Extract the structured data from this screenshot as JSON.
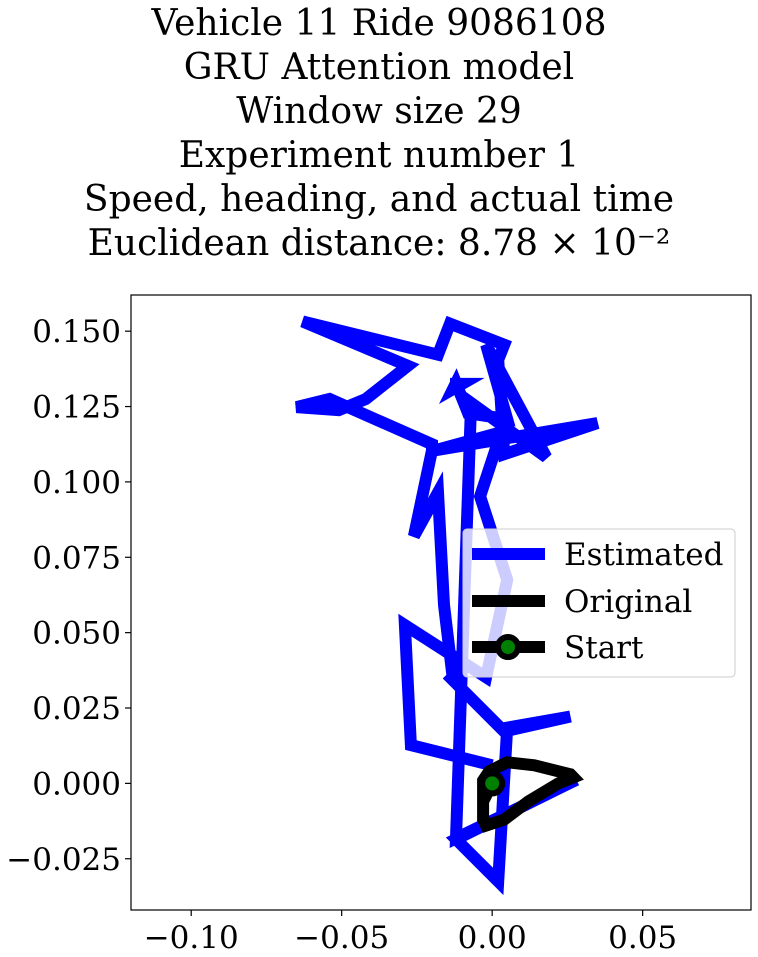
{
  "chart_data": {
    "type": "line",
    "title_lines": [
      "Vehicle 11 Ride 9086108",
      "GRU Attention model",
      "Window size 29",
      "Experiment number 1",
      "Speed, heading, and actual time",
      "Euclidean distance: 8.78 × 10⁻²"
    ],
    "xlabel": "",
    "ylabel": "",
    "xlim": [
      -0.12,
      0.086
    ],
    "ylim": [
      -0.042,
      0.162
    ],
    "xticks": [
      -0.1,
      -0.05,
      0.0,
      0.05
    ],
    "xtick_labels": [
      "−0.10",
      "−0.05",
      "0.00",
      "0.05"
    ],
    "yticks": [
      0.15,
      0.125,
      0.1,
      0.075,
      0.05,
      0.025,
      0.0,
      -0.025
    ],
    "ytick_labels": [
      "0.150",
      "0.125",
      "0.100",
      "0.075",
      "0.050",
      "0.025",
      "0.000",
      "−0.025"
    ],
    "grid": false,
    "legend_position": "center-right",
    "series": [
      {
        "name": "Estimated",
        "color": "#0000ff",
        "x": [
          0.0,
          -0.027,
          -0.029,
          -0.002,
          0.005,
          -0.004,
          0.003,
          -0.019,
          0.035,
          0.004,
          0.002,
          0.004,
          -0.014,
          -0.018,
          -0.063,
          -0.028,
          -0.042,
          -0.051,
          -0.065,
          -0.054,
          -0.02,
          -0.02,
          -0.026,
          -0.018,
          -0.016,
          -0.013,
          -0.015,
          0.004,
          0.026,
          0.005,
          0.002,
          -0.012,
          0.028,
          -0.012,
          -0.007,
          0.018,
          -0.002,
          0.005,
          -0.008,
          -0.012,
          -0.013,
          -0.01,
          -0.014
        ],
        "y": [
          0.006,
          0.0127,
          0.0525,
          0.0352,
          0.0675,
          0.0952,
          0.1165,
          0.1105,
          0.1195,
          0.1092,
          0.1405,
          0.1455,
          0.1525,
          0.1422,
          0.1532,
          0.1385,
          0.1275,
          0.1238,
          0.1248,
          0.1275,
          0.1125,
          0.1105,
          0.082,
          0.0965,
          0.0592,
          0.0342,
          0.0362,
          0.0172,
          0.0222,
          0.0185,
          -0.0325,
          -0.0185,
          0.0012,
          -0.0182,
          0.1262,
          0.1082,
          0.1455,
          0.1208,
          0.1228,
          0.1328,
          0.1308,
          0.1325,
          0.1325
        ]
      },
      {
        "name": "Original",
        "color": "#000000",
        "x": [
          0.0,
          -0.003,
          -0.003,
          -0.002,
          0.004,
          0.012,
          0.022,
          0.027,
          0.026,
          0.014,
          0.005,
          -0.001,
          -0.003,
          -0.003,
          0.0
        ],
        "y": [
          0.0,
          -0.006,
          -0.012,
          -0.014,
          -0.012,
          -0.006,
          0.0,
          0.002,
          0.003,
          0.006,
          0.007,
          0.004,
          0.001,
          -0.002,
          0.0
        ]
      }
    ],
    "start_marker": {
      "name": "Start",
      "x": 0.0,
      "y": 0.0,
      "edge_color": "#000000",
      "face_color": "#008000"
    }
  }
}
